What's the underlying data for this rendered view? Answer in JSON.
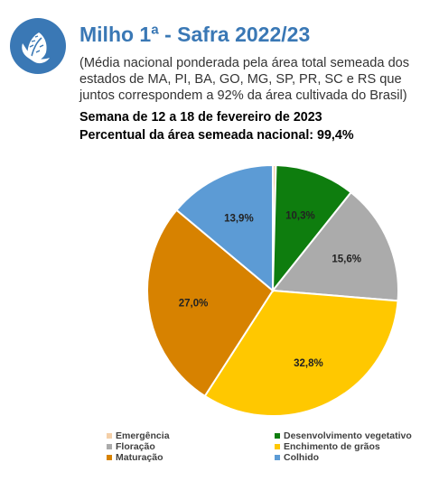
{
  "header": {
    "title": "Milho 1ª - Safra 2022/23",
    "subtitle": "(Média nacional ponderada pela área total semeada dos estados de MA, PI, BA, GO, MG, SP, PR, SC e RS que juntos correspondem a 92% da área cultivada do Brasil)",
    "week": "Semana de 12 a 18 de fevereiro de 2023",
    "percent_sown": "Percentual da área semeada nacional: 99,4%"
  },
  "icon": "corn-icon",
  "colors": {
    "title": "#3a78b5",
    "icon": "#3a78b5"
  },
  "chart_data": {
    "type": "pie",
    "title": "",
    "slices": [
      {
        "name": "Emergência",
        "value": 0.4,
        "label": "",
        "color": "#f4cfa8"
      },
      {
        "name": "Desenvolvimento vegetativo",
        "value": 10.3,
        "label": "10,3%",
        "color": "#0e7d0e"
      },
      {
        "name": "Floração",
        "value": 15.6,
        "label": "15,6%",
        "color": "#ababab"
      },
      {
        "name": "Enchimento de grãos",
        "value": 32.8,
        "label": "32,8%",
        "color": "#ffc800"
      },
      {
        "name": "Maturação",
        "value": 27.0,
        "label": "27,0%",
        "color": "#d78200"
      },
      {
        "name": "Colhido",
        "value": 13.9,
        "label": "13,9%",
        "color": "#5c9bd5"
      }
    ],
    "legend": {
      "position": "bottom",
      "items": [
        {
          "label": "Emergência",
          "color": "#f4cfa8"
        },
        {
          "label": "Desenvolvimento vegetativo",
          "color": "#0e7d0e"
        },
        {
          "label": "Floração",
          "color": "#ababab"
        },
        {
          "label": "Enchimento de grãos",
          "color": "#ffc800"
        },
        {
          "label": "Maturação",
          "color": "#d78200"
        },
        {
          "label": "Colhido",
          "color": "#5c9bd5"
        }
      ]
    }
  }
}
